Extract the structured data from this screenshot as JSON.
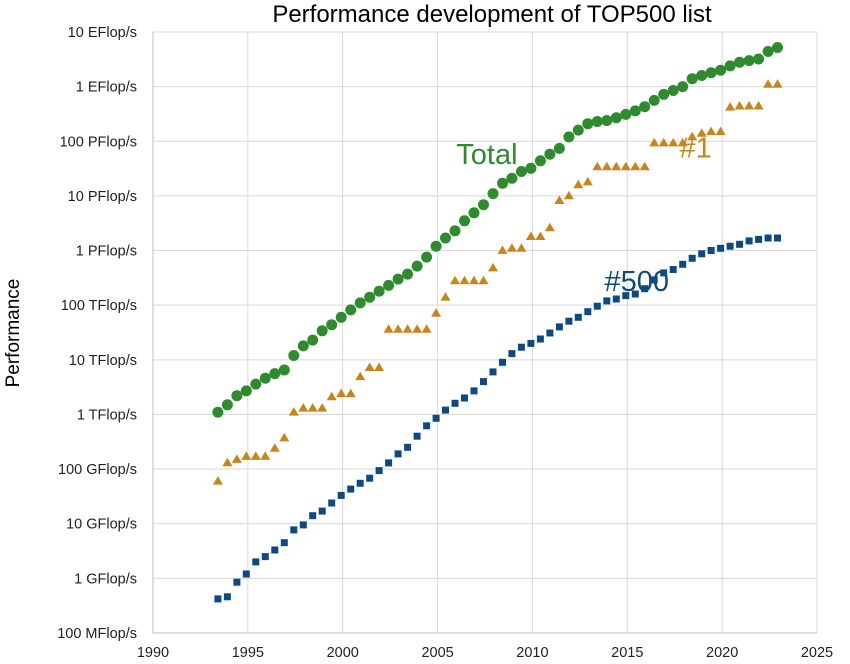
{
  "chart_data": {
    "type": "scatter",
    "title": "Performance development of TOP500 list",
    "xlabel": "",
    "ylabel": "Performance",
    "xlim": [
      1990,
      2025
    ],
    "ylim_flops": [
      100000000.0,
      1e+19
    ],
    "y_scale": "log",
    "grid": true,
    "x_ticks": [
      1990,
      1995,
      2000,
      2005,
      2010,
      2015,
      2020,
      2025
    ],
    "y_ticks": [
      {
        "value": 100000000.0,
        "label": "100 MFlop/s"
      },
      {
        "value": 1000000000.0,
        "label": "1 GFlop/s"
      },
      {
        "value": 10000000000.0,
        "label": "10 GFlop/s"
      },
      {
        "value": 100000000000.0,
        "label": "100 GFlop/s"
      },
      {
        "value": 1000000000000.0,
        "label": "1 TFlop/s"
      },
      {
        "value": 10000000000000.0,
        "label": "10 TFlop/s"
      },
      {
        "value": 100000000000000.0,
        "label": "100 TFlop/s"
      },
      {
        "value": 1000000000000000.0,
        "label": "1 PFlop/s"
      },
      {
        "value": 1e+16,
        "label": "10 PFlop/s"
      },
      {
        "value": 1e+17,
        "label": "100 PFlop/s"
      },
      {
        "value": 1e+18,
        "label": "1 EFlop/s"
      },
      {
        "value": 1e+19,
        "label": "10 EFlop/s"
      }
    ],
    "series": [
      {
        "name": "Total",
        "marker": "circle",
        "color": "#2e8b2e",
        "x": [
          1993.42,
          1993.92,
          1994.42,
          1994.92,
          1995.42,
          1995.92,
          1996.42,
          1996.92,
          1997.42,
          1997.92,
          1998.42,
          1998.92,
          1999.42,
          1999.92,
          2000.42,
          2000.92,
          2001.42,
          2001.92,
          2002.42,
          2002.92,
          2003.42,
          2003.92,
          2004.42,
          2004.92,
          2005.42,
          2005.92,
          2006.42,
          2006.92,
          2007.42,
          2007.92,
          2008.42,
          2008.92,
          2009.42,
          2009.92,
          2010.42,
          2010.92,
          2011.42,
          2011.92,
          2012.42,
          2012.92,
          2013.42,
          2013.92,
          2014.42,
          2014.92,
          2015.42,
          2015.92,
          2016.42,
          2016.92,
          2017.42,
          2017.92,
          2018.42,
          2018.92,
          2019.42,
          2019.92,
          2020.42,
          2020.92,
          2021.42,
          2021.92,
          2022.42,
          2022.92
        ],
        "y": [
          1100000000000.0,
          1500000000000.0,
          2200000000000.0,
          2700000000000.0,
          3600000000000.0,
          4600000000000.0,
          5600000000000.0,
          6500000000000.0,
          12000000000000.0,
          18000000000000.0,
          23000000000000.0,
          34000000000000.0,
          44000000000000.0,
          60000000000000.0,
          82000000000000.0,
          110000000000000.0,
          140000000000000.0,
          180000000000000.0,
          230000000000000.0,
          300000000000000.0,
          370000000000000.0,
          520000000000000.0,
          760000000000000.0,
          1200000000000000.0,
          1700000000000000.0,
          2300000000000000.0,
          3500000000000000.0,
          4900000000000000.0,
          6900000000000000.0,
          1.1e+16,
          1.7e+16,
          2.1e+16,
          2.8e+16,
          3.2e+16,
          4.4e+16,
          5.8e+16,
          7.4e+16,
          1.2e+17,
          1.6e+17,
          2.1e+17,
          2.3e+17,
          2.4e+17,
          2.7e+17,
          3.1e+17,
          3.6e+17,
          4.3e+17,
          5.6e+17,
          7.2e+17,
          8.5e+17,
          1e+18,
          1.4e+18,
          1.6e+18,
          1.8e+18,
          2e+18,
          2.4e+18,
          2.8e+18,
          3e+18,
          3.2e+18,
          4.4e+18,
          5.2e+18
        ]
      },
      {
        "name": "#1",
        "marker": "triangle",
        "color": "#c8861a",
        "x": [
          1993.42,
          1993.92,
          1994.42,
          1994.92,
          1995.42,
          1995.92,
          1996.42,
          1996.92,
          1997.42,
          1997.92,
          1998.42,
          1998.92,
          1999.42,
          1999.92,
          2000.42,
          2000.92,
          2001.42,
          2001.92,
          2002.42,
          2002.92,
          2003.42,
          2003.92,
          2004.42,
          2004.92,
          2005.42,
          2005.92,
          2006.42,
          2006.92,
          2007.42,
          2007.92,
          2008.42,
          2008.92,
          2009.42,
          2009.92,
          2010.42,
          2010.92,
          2011.42,
          2011.92,
          2012.42,
          2012.92,
          2013.42,
          2013.92,
          2014.42,
          2014.92,
          2015.42,
          2015.92,
          2016.42,
          2016.92,
          2017.42,
          2017.92,
          2018.42,
          2018.92,
          2019.42,
          2019.92,
          2020.42,
          2020.92,
          2021.42,
          2021.92,
          2022.42,
          2022.92
        ],
        "y": [
          60000000000.0,
          130000000000.0,
          150000000000.0,
          170000000000.0,
          170000000000.0,
          170000000000.0,
          240000000000.0,
          370000000000.0,
          1100000000000.0,
          1300000000000.0,
          1300000000000.0,
          1300000000000.0,
          2100000000000.0,
          2400000000000.0,
          2400000000000.0,
          4900000000000.0,
          7200000000000.0,
          7200000000000.0,
          36000000000000.0,
          36000000000000.0,
          36000000000000.0,
          36000000000000.0,
          36000000000000.0,
          71000000000000.0,
          140000000000000.0,
          280000000000000.0,
          280000000000000.0,
          280000000000000.0,
          280000000000000.0,
          480000000000000.0,
          1000000000000000.0,
          1100000000000000.0,
          1100000000000000.0,
          1800000000000000.0,
          1800000000000000.0,
          2600000000000000.0,
          8200000000000000.0,
          1e+16,
          1.6e+16,
          1.8e+16,
          3.4e+16,
          3.4e+16,
          3.4e+16,
          3.4e+16,
          3.4e+16,
          3.4e+16,
          9.3e+16,
          9.3e+16,
          9.3e+16,
          9.3e+16,
          1.2e+17,
          1.4e+17,
          1.5e+17,
          1.5e+17,
          4.2e+17,
          4.4e+17,
          4.4e+17,
          4.4e+17,
          1.1e+18,
          1.1e+18
        ]
      },
      {
        "name": "#500",
        "marker": "square",
        "color": "#0e4a82",
        "x": [
          1993.42,
          1993.92,
          1994.42,
          1994.92,
          1995.42,
          1995.92,
          1996.42,
          1996.92,
          1997.42,
          1997.92,
          1998.42,
          1998.92,
          1999.42,
          1999.92,
          2000.42,
          2000.92,
          2001.42,
          2001.92,
          2002.42,
          2002.92,
          2003.42,
          2003.92,
          2004.42,
          2004.92,
          2005.42,
          2005.92,
          2006.42,
          2006.92,
          2007.42,
          2007.92,
          2008.42,
          2008.92,
          2009.42,
          2009.92,
          2010.42,
          2010.92,
          2011.42,
          2011.92,
          2012.42,
          2012.92,
          2013.42,
          2013.92,
          2014.42,
          2014.92,
          2015.42,
          2015.92,
          2016.42,
          2016.92,
          2017.42,
          2017.92,
          2018.42,
          2018.92,
          2019.42,
          2019.92,
          2020.42,
          2020.92,
          2021.42,
          2021.92,
          2022.42,
          2022.92
        ],
        "y": [
          420000000.0,
          460000000.0,
          850000000.0,
          1200000000.0,
          2000000000.0,
          2500000000.0,
          3300000000.0,
          4500000000.0,
          7700000000.0,
          9500000000.0,
          14000000000.0,
          17000000000.0,
          24000000000.0,
          33000000000.0,
          43000000000.0,
          55000000000.0,
          68000000000.0,
          94000000000.0,
          130000000000.0,
          190000000000.0,
          250000000000.0,
          400000000000.0,
          620000000000.0,
          850000000000.0,
          1200000000000.0,
          1600000000000.0,
          2000000000000.0,
          2700000000000.0,
          4000000000000.0,
          6000000000000.0,
          9000000000000.0,
          13000000000000.0,
          17000000000000.0,
          20000000000000.0,
          24000000000000.0,
          31000000000000.0,
          40000000000000.0,
          51000000000000.0,
          60000000000000.0,
          76000000000000.0,
          96000000000000.0,
          120000000000000.0,
          130000000000000.0,
          150000000000000.0,
          160000000000000.0,
          200000000000000.0,
          290000000000000.0,
          390000000000000.0,
          450000000000000.0,
          560000000000000.0,
          720000000000000.0,
          870000000000000.0,
          1000000000000000.0,
          1100000000000000.0,
          1200000000000000.0,
          1300000000000000.0,
          1500000000000000.0,
          1600000000000000.0,
          1700000000000000.0,
          1700000000000000.0
        ]
      }
    ],
    "annotations": [
      {
        "text": "Total",
        "series": "Total",
        "color": "#2e8b2e",
        "x": 2007.6,
        "y": 3.8e+16
      },
      {
        "text": "#1",
        "series": "#1",
        "color": "#c8861a",
        "x": 2018.6,
        "y": 5e+16
      },
      {
        "text": "#500",
        "series": "#500",
        "color": "#0e4a82",
        "x": 2015.5,
        "y": 180000000000000.0
      }
    ]
  }
}
